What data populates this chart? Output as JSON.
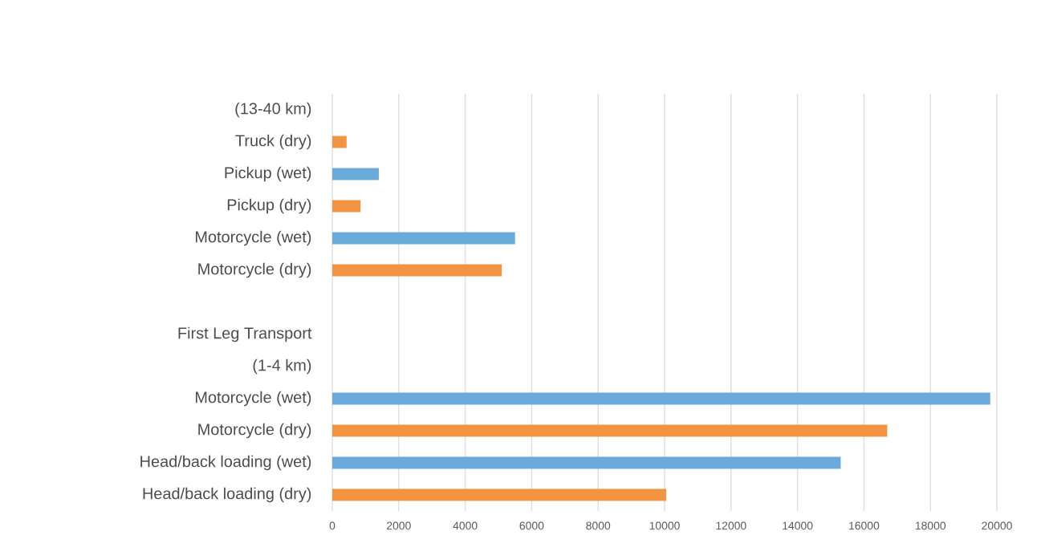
{
  "chart_data": {
    "type": "bar",
    "orientation": "horizontal",
    "categories": [
      "(13-40 km)",
      "Truck (dry)",
      "Pickup (wet)",
      "Pickup (dry)",
      "Motorcycle (wet)",
      "Motorcycle (dry)",
      null,
      "First Leg Transport",
      "(1-4 km)",
      "Motorcycle  (wet)",
      "Motorcycle (dry)",
      "Head/back loading (wet)",
      "Head/back loading  (dry)"
    ],
    "values": [
      null,
      430,
      1400,
      850,
      5500,
      5100,
      null,
      null,
      null,
      19800,
      16700,
      15300,
      10050
    ],
    "colors": [
      "#f39442",
      "#f39442",
      "#6aabdb",
      "#f39442",
      "#6aabdb",
      "#f39442",
      "#f39442",
      "#f39442",
      "#f39442",
      "#6aabdb",
      "#f39442",
      "#6aabdb",
      "#f39442"
    ],
    "xlim": [
      0,
      20000
    ],
    "xticks": [
      0,
      2000,
      4000,
      6000,
      8000,
      10000,
      12000,
      14000,
      16000,
      18000,
      20000
    ],
    "grid": "x"
  }
}
